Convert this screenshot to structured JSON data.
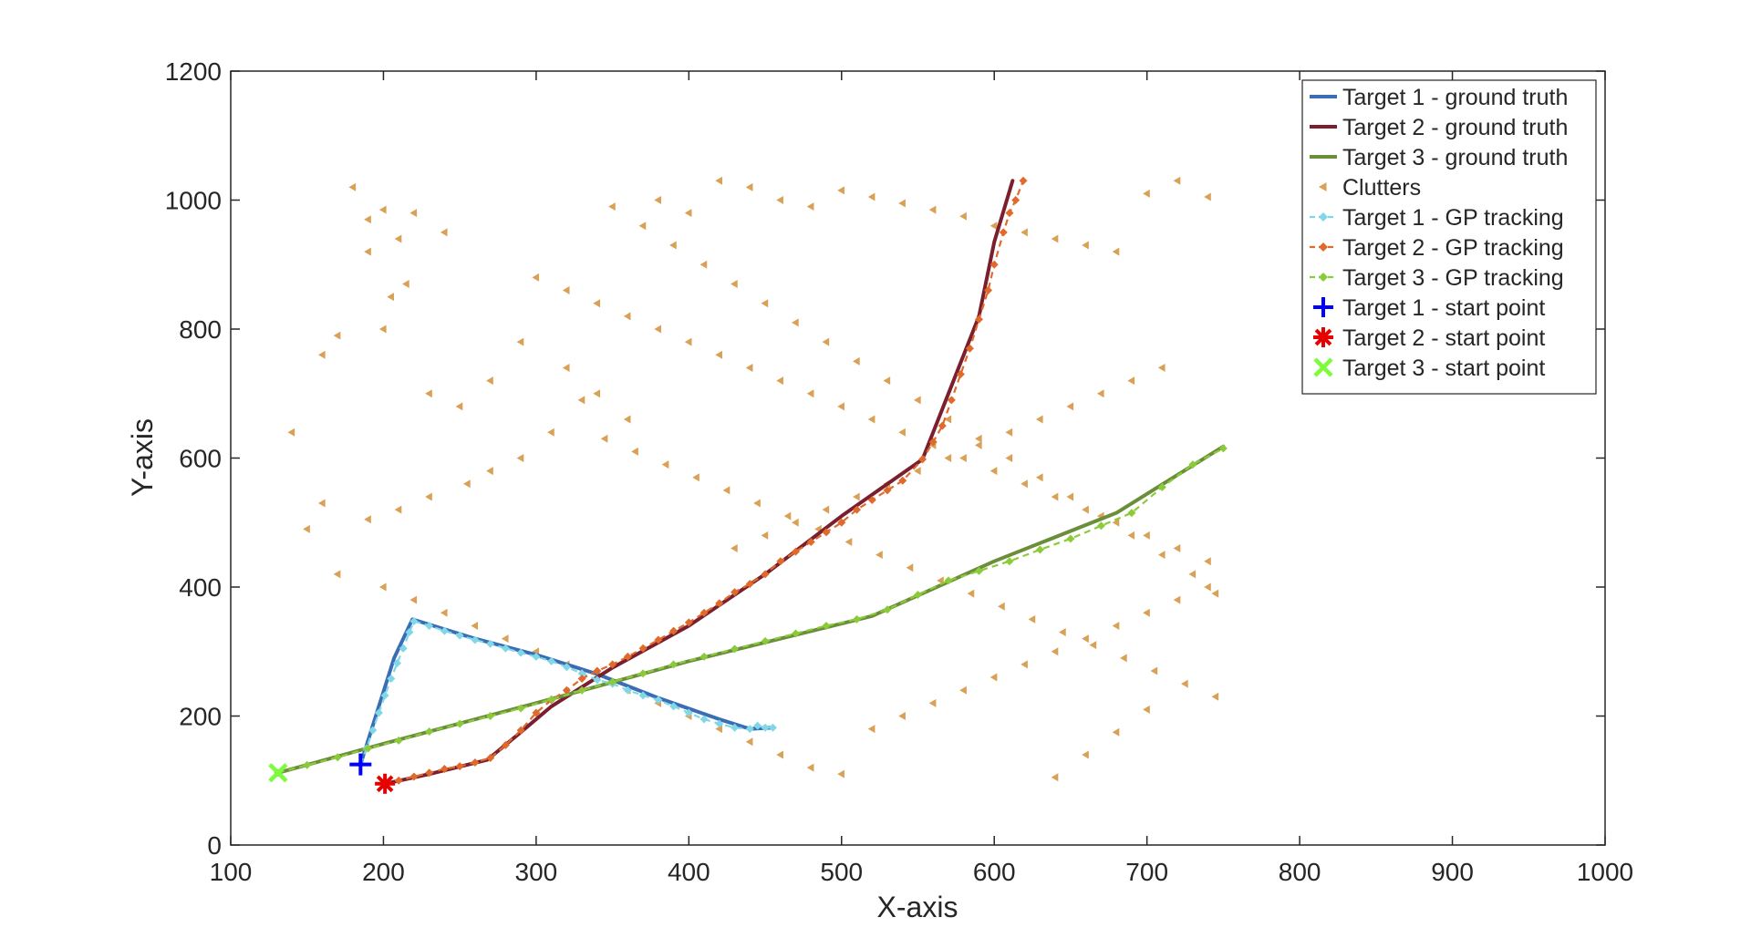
{
  "chart_data": {
    "type": "line",
    "xlabel": "X-axis",
    "ylabel": "Y-axis",
    "xlim": [
      100,
      1000
    ],
    "ylim": [
      0,
      1200
    ],
    "xticks": [
      100,
      200,
      300,
      400,
      500,
      600,
      700,
      800,
      900,
      1000
    ],
    "yticks": [
      0,
      200,
      400,
      600,
      800,
      1000,
      1200
    ],
    "grid": false,
    "legend_position": "top-right",
    "series": [
      {
        "name": "Target 1 - ground truth",
        "kind": "line",
        "color": "#3A6DB4",
        "x": [
          185,
          197,
          207,
          219,
          260,
          300,
          340,
          380,
          420,
          440,
          455
        ],
        "y": [
          125,
          215,
          290,
          350,
          320,
          295,
          265,
          228,
          195,
          180,
          182
        ]
      },
      {
        "name": "Target 2 - ground truth",
        "kind": "line",
        "color": "#7B1E2E",
        "x": [
          201,
          230,
          268,
          290,
          310,
          350,
          400,
          450,
          500,
          553,
          570,
          590,
          600,
          612
        ],
        "y": [
          95,
          110,
          132,
          175,
          215,
          275,
          340,
          420,
          510,
          598,
          700,
          820,
          935,
          1030
        ]
      },
      {
        "name": "Target 3 - ground truth",
        "kind": "line",
        "color": "#6B8E3A",
        "x": [
          131,
          200,
          300,
          400,
          520,
          600,
          680,
          750
        ],
        "y": [
          112,
          157,
          220,
          285,
          355,
          440,
          515,
          618
        ]
      },
      {
        "name": "Clutters",
        "kind": "marker",
        "marker": "triangle-left",
        "color": "#D9A056",
        "x": [
          180,
          190,
          200,
          210,
          220,
          240,
          190,
          205,
          215,
          170,
          160,
          200,
          230,
          250,
          270,
          290,
          320,
          340,
          360,
          330,
          310,
          290,
          270,
          255,
          230,
          210,
          190,
          150,
          140,
          160,
          170,
          200,
          220,
          240,
          260,
          280,
          300,
          320,
          340,
          360,
          380,
          400,
          420,
          440,
          460,
          480,
          500,
          520,
          540,
          560,
          580,
          600,
          620,
          640,
          660,
          680,
          700,
          720,
          740,
          350,
          370,
          390,
          410,
          430,
          450,
          470,
          490,
          510,
          530,
          550,
          570,
          590,
          610,
          630,
          650,
          670,
          690,
          710,
          730,
          745,
          380,
          400,
          420,
          440,
          460,
          480,
          500,
          520,
          540,
          560,
          580,
          600,
          620,
          640,
          660,
          680,
          700,
          720,
          740,
          300,
          320,
          340,
          360,
          380,
          400,
          420,
          440,
          460,
          480,
          500,
          520,
          540,
          560,
          580,
          600,
          620,
          640,
          660,
          680,
          700,
          720,
          740,
          430,
          450,
          470,
          490,
          510,
          530,
          550,
          570,
          590,
          610,
          630,
          650,
          670,
          690,
          710,
          640,
          660,
          680,
          700,
          345,
          365,
          385,
          405,
          425,
          445,
          465,
          485,
          505,
          525,
          545,
          565,
          585,
          605,
          625,
          645,
          665,
          685,
          705,
          725,
          745
        ],
        "y": [
          1020,
          970,
          985,
          940,
          980,
          950,
          920,
          850,
          870,
          790,
          760,
          800,
          700,
          680,
          720,
          780,
          740,
          700,
          660,
          690,
          640,
          600,
          580,
          560,
          540,
          520,
          505,
          490,
          640,
          530,
          420,
          400,
          380,
          360,
          340,
          320,
          300,
          280,
          260,
          240,
          220,
          200,
          180,
          160,
          140,
          120,
          110,
          180,
          200,
          220,
          240,
          260,
          280,
          300,
          320,
          340,
          360,
          380,
          400,
          990,
          960,
          930,
          900,
          870,
          840,
          810,
          780,
          750,
          720,
          690,
          660,
          630,
          600,
          570,
          540,
          510,
          480,
          450,
          420,
          390,
          1000,
          980,
          1030,
          1020,
          1000,
          990,
          1015,
          1005,
          995,
          985,
          975,
          960,
          950,
          940,
          930,
          920,
          1010,
          1030,
          1005,
          880,
          860,
          840,
          820,
          800,
          780,
          760,
          740,
          720,
          700,
          680,
          660,
          640,
          620,
          600,
          580,
          560,
          540,
          520,
          500,
          480,
          460,
          440,
          460,
          480,
          500,
          520,
          540,
          560,
          580,
          600,
          620,
          640,
          660,
          680,
          700,
          720,
          740,
          105,
          140,
          175,
          210,
          630,
          610,
          590,
          570,
          550,
          530,
          510,
          490,
          470,
          450,
          430,
          410,
          390,
          370,
          350,
          330,
          310,
          290,
          270,
          250,
          230
        ]
      },
      {
        "name": "Target 1 - GP tracking",
        "kind": "line-marker",
        "color": "#7FD7E8",
        "x": [
          185,
          189,
          193,
          197,
          201,
          205,
          209,
          213,
          217,
          220,
          230,
          240,
          250,
          260,
          270,
          280,
          290,
          300,
          310,
          320,
          330,
          340,
          350,
          360,
          370,
          380,
          390,
          400,
          410,
          420,
          430,
          440,
          445,
          450,
          455
        ],
        "y": [
          125,
          150,
          178,
          205,
          232,
          258,
          282,
          305,
          330,
          347,
          340,
          332,
          325,
          318,
          312,
          305,
          298,
          292,
          285,
          276,
          266,
          256,
          250,
          240,
          232,
          225,
          215,
          205,
          195,
          188,
          182,
          180,
          185,
          182,
          182
        ]
      },
      {
        "name": "Target 2 - GP tracking",
        "kind": "line-marker",
        "color": "#E06A2C",
        "x": [
          201,
          210,
          220,
          230,
          240,
          250,
          260,
          270,
          280,
          290,
          300,
          310,
          320,
          330,
          340,
          350,
          360,
          370,
          380,
          390,
          400,
          410,
          420,
          430,
          440,
          450,
          460,
          470,
          480,
          490,
          500,
          510,
          520,
          530,
          540,
          553,
          560,
          566,
          572,
          578,
          584,
          590,
          596,
          600,
          606,
          610,
          614,
          619
        ],
        "y": [
          95,
          100,
          106,
          112,
          118,
          122,
          128,
          135,
          155,
          178,
          205,
          225,
          240,
          258,
          270,
          280,
          292,
          305,
          318,
          332,
          345,
          360,
          375,
          392,
          405,
          420,
          440,
          455,
          470,
          485,
          500,
          520,
          535,
          550,
          565,
          598,
          625,
          650,
          690,
          730,
          770,
          815,
          860,
          900,
          950,
          980,
          1000,
          1030
        ]
      },
      {
        "name": "Target 3 - GP tracking",
        "kind": "line-marker",
        "color": "#8BCB3A",
        "x": [
          131,
          150,
          170,
          190,
          210,
          230,
          250,
          270,
          290,
          310,
          330,
          350,
          370,
          390,
          410,
          430,
          450,
          470,
          490,
          510,
          530,
          550,
          570,
          590,
          610,
          630,
          650,
          670,
          690,
          710,
          730,
          750
        ],
        "y": [
          112,
          124,
          136,
          150,
          162,
          176,
          188,
          200,
          212,
          226,
          240,
          253,
          266,
          280,
          292,
          304,
          316,
          328,
          340,
          350,
          365,
          388,
          410,
          425,
          440,
          458,
          475,
          495,
          515,
          555,
          590,
          615
        ]
      },
      {
        "name": "Target 1 - start point",
        "kind": "start",
        "marker": "plus",
        "color": "#0000FF",
        "x": [
          185
        ],
        "y": [
          125
        ]
      },
      {
        "name": "Target 2 - start point",
        "kind": "start",
        "marker": "asterisk",
        "color": "#E60000",
        "x": [
          201
        ],
        "y": [
          95
        ]
      },
      {
        "name": "Target 3 - start point",
        "kind": "start",
        "marker": "x",
        "color": "#7CFC3C",
        "x": [
          131
        ],
        "y": [
          112
        ]
      }
    ]
  }
}
